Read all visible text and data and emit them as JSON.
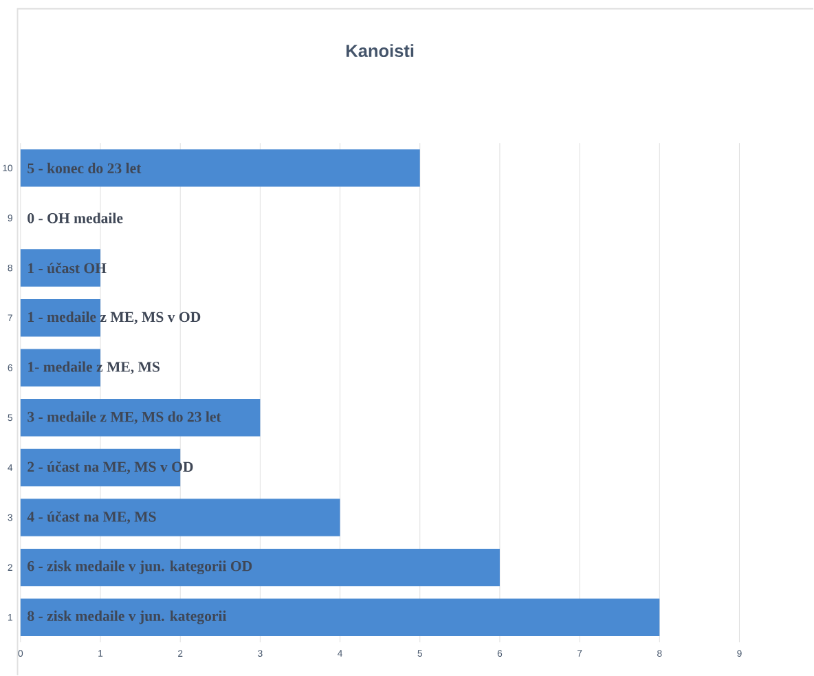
{
  "chart_data": {
    "type": "bar",
    "orientation": "horizontal",
    "title": "Kanoisti",
    "categories": [
      "10",
      "9",
      "8",
      "7",
      "6",
      "5",
      "4",
      "3",
      "2",
      "1"
    ],
    "values": [
      5,
      0,
      1,
      1,
      1,
      3,
      2,
      4,
      6,
      8
    ],
    "value_labels": [
      "5 - konec do 23 let",
      "0 - OH medaile",
      "1 - účast OH",
      "1 - medaile z ME, MS v OD",
      "1- medaile z ME, MS",
      "3 - medaile z ME, MS do 23 let",
      "2 - účast na ME, MS v OD",
      "4 - účast na ME, MS",
      "6 - zisk medaile v jun. kategorii OD",
      "8 - zisk medaile v jun. kategorii"
    ],
    "color": "#4a8ad2",
    "xlim": [
      0,
      9
    ],
    "xticks": [
      0,
      1,
      2,
      3,
      4,
      5,
      6,
      7,
      8,
      9
    ],
    "grid": "x"
  }
}
